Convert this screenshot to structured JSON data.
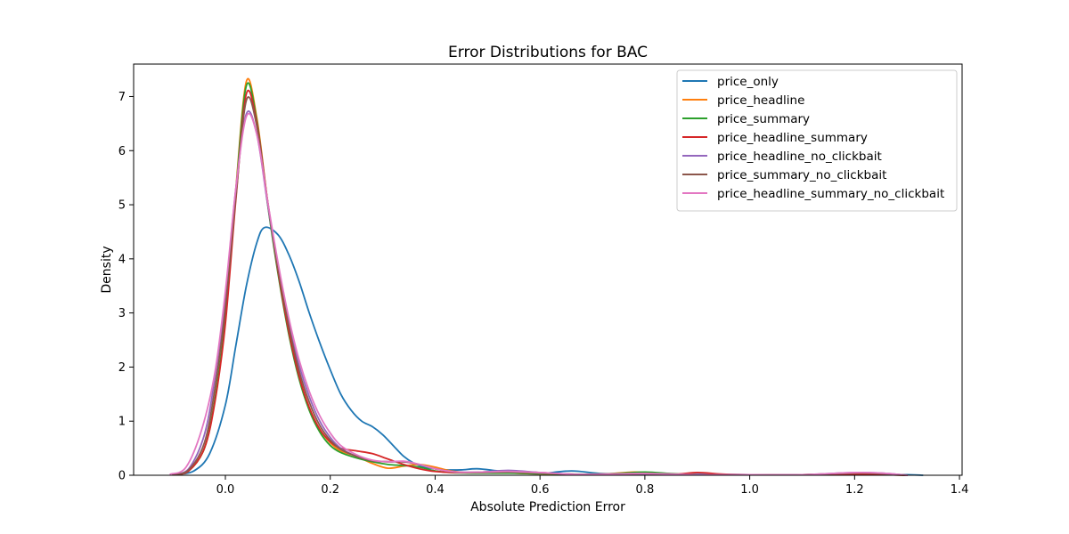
{
  "chart_data": {
    "type": "line",
    "title": "Error Distributions for BAC",
    "xlabel": "Absolute Prediction Error",
    "ylabel": "Density",
    "xlim": [
      -0.175,
      1.405
    ],
    "ylim": [
      0,
      7.6
    ],
    "xticks": [
      0.0,
      0.2,
      0.4,
      0.6,
      0.8,
      1.0,
      1.2,
      1.4
    ],
    "xtick_labels": [
      "0.0",
      "0.2",
      "0.4",
      "0.6",
      "0.8",
      "1.0",
      "1.2",
      "1.4"
    ],
    "yticks": [
      0,
      1,
      2,
      3,
      4,
      5,
      6,
      7
    ],
    "ytick_labels": [
      "0",
      "1",
      "2",
      "3",
      "4",
      "5",
      "6",
      "7"
    ],
    "grid": false,
    "legend_position": "top-right",
    "series": [
      {
        "name": "price_only",
        "color": "#1f77b4",
        "points": [
          [
            -0.09,
            0.02
          ],
          [
            -0.06,
            0.08
          ],
          [
            -0.03,
            0.4
          ],
          [
            0.0,
            1.3
          ],
          [
            0.02,
            2.4
          ],
          [
            0.04,
            3.5
          ],
          [
            0.06,
            4.3
          ],
          [
            0.075,
            4.58
          ],
          [
            0.1,
            4.45
          ],
          [
            0.12,
            4.1
          ],
          [
            0.14,
            3.6
          ],
          [
            0.16,
            3.0
          ],
          [
            0.18,
            2.45
          ],
          [
            0.2,
            1.95
          ],
          [
            0.22,
            1.5
          ],
          [
            0.24,
            1.2
          ],
          [
            0.26,
            1.0
          ],
          [
            0.28,
            0.9
          ],
          [
            0.3,
            0.75
          ],
          [
            0.32,
            0.55
          ],
          [
            0.34,
            0.35
          ],
          [
            0.36,
            0.22
          ],
          [
            0.38,
            0.15
          ],
          [
            0.4,
            0.12
          ],
          [
            0.42,
            0.1
          ],
          [
            0.45,
            0.1
          ],
          [
            0.48,
            0.12
          ],
          [
            0.52,
            0.08
          ],
          [
            0.56,
            0.04
          ],
          [
            0.6,
            0.03
          ],
          [
            0.66,
            0.08
          ],
          [
            0.72,
            0.03
          ],
          [
            0.8,
            0.02
          ],
          [
            0.9,
            0.02
          ],
          [
            1.0,
            0.01
          ],
          [
            1.1,
            0.01
          ],
          [
            1.2,
            0.02
          ],
          [
            1.3,
            0.01
          ],
          [
            1.33,
            0.0
          ]
        ]
      },
      {
        "name": "price_headline",
        "color": "#ff7f0e",
        "points": [
          [
            -0.1,
            0.01
          ],
          [
            -0.07,
            0.08
          ],
          [
            -0.04,
            0.5
          ],
          [
            -0.02,
            1.4
          ],
          [
            0.0,
            2.9
          ],
          [
            0.02,
            5.3
          ],
          [
            0.04,
            7.28
          ],
          [
            0.06,
            6.6
          ],
          [
            0.08,
            5.1
          ],
          [
            0.1,
            3.8
          ],
          [
            0.12,
            2.7
          ],
          [
            0.14,
            1.85
          ],
          [
            0.16,
            1.25
          ],
          [
            0.18,
            0.85
          ],
          [
            0.2,
            0.6
          ],
          [
            0.22,
            0.45
          ],
          [
            0.25,
            0.35
          ],
          [
            0.28,
            0.22
          ],
          [
            0.31,
            0.13
          ],
          [
            0.34,
            0.17
          ],
          [
            0.37,
            0.2
          ],
          [
            0.4,
            0.15
          ],
          [
            0.43,
            0.08
          ],
          [
            0.47,
            0.04
          ],
          [
            0.52,
            0.05
          ],
          [
            0.58,
            0.03
          ],
          [
            0.65,
            0.02
          ],
          [
            0.72,
            0.02
          ],
          [
            0.78,
            0.06
          ],
          [
            0.84,
            0.03
          ],
          [
            0.9,
            0.01
          ],
          [
            1.0,
            0.01
          ],
          [
            1.1,
            0.01
          ],
          [
            1.2,
            0.04
          ],
          [
            1.26,
            0.02
          ],
          [
            1.3,
            0.0
          ]
        ]
      },
      {
        "name": "price_summary",
        "color": "#2ca02c",
        "points": [
          [
            -0.1,
            0.01
          ],
          [
            -0.07,
            0.08
          ],
          [
            -0.04,
            0.5
          ],
          [
            -0.02,
            1.4
          ],
          [
            0.0,
            2.9
          ],
          [
            0.02,
            5.25
          ],
          [
            0.04,
            7.2
          ],
          [
            0.06,
            6.55
          ],
          [
            0.08,
            5.05
          ],
          [
            0.1,
            3.75
          ],
          [
            0.12,
            2.65
          ],
          [
            0.14,
            1.8
          ],
          [
            0.16,
            1.2
          ],
          [
            0.18,
            0.8
          ],
          [
            0.2,
            0.55
          ],
          [
            0.22,
            0.42
          ],
          [
            0.25,
            0.32
          ],
          [
            0.28,
            0.25
          ],
          [
            0.31,
            0.2
          ],
          [
            0.34,
            0.18
          ],
          [
            0.37,
            0.15
          ],
          [
            0.4,
            0.08
          ],
          [
            0.43,
            0.05
          ],
          [
            0.48,
            0.04
          ],
          [
            0.54,
            0.04
          ],
          [
            0.6,
            0.03
          ],
          [
            0.68,
            0.02
          ],
          [
            0.74,
            0.03
          ],
          [
            0.8,
            0.06
          ],
          [
            0.85,
            0.03
          ],
          [
            0.9,
            0.01
          ],
          [
            1.0,
            0.01
          ],
          [
            1.1,
            0.01
          ],
          [
            1.2,
            0.02
          ],
          [
            1.26,
            0.01
          ],
          [
            1.3,
            0.0
          ]
        ]
      },
      {
        "name": "price_headline_summary",
        "color": "#d62728",
        "points": [
          [
            -0.1,
            0.01
          ],
          [
            -0.07,
            0.08
          ],
          [
            -0.04,
            0.5
          ],
          [
            -0.02,
            1.35
          ],
          [
            0.0,
            2.8
          ],
          [
            0.02,
            5.1
          ],
          [
            0.04,
            7.05
          ],
          [
            0.06,
            6.5
          ],
          [
            0.08,
            5.1
          ],
          [
            0.1,
            3.8
          ],
          [
            0.12,
            2.7
          ],
          [
            0.14,
            1.85
          ],
          [
            0.16,
            1.25
          ],
          [
            0.18,
            0.85
          ],
          [
            0.2,
            0.62
          ],
          [
            0.22,
            0.5
          ],
          [
            0.25,
            0.45
          ],
          [
            0.28,
            0.4
          ],
          [
            0.31,
            0.3
          ],
          [
            0.34,
            0.2
          ],
          [
            0.37,
            0.12
          ],
          [
            0.4,
            0.07
          ],
          [
            0.44,
            0.05
          ],
          [
            0.49,
            0.06
          ],
          [
            0.54,
            0.08
          ],
          [
            0.6,
            0.05
          ],
          [
            0.66,
            0.02
          ],
          [
            0.72,
            0.02
          ],
          [
            0.8,
            0.03
          ],
          [
            0.86,
            0.02
          ],
          [
            0.9,
            0.05
          ],
          [
            0.95,
            0.02
          ],
          [
            1.0,
            0.01
          ],
          [
            1.1,
            0.01
          ],
          [
            1.2,
            0.02
          ],
          [
            1.3,
            0.0
          ]
        ]
      },
      {
        "name": "price_headline_no_clickbait",
        "color": "#9467bd",
        "points": [
          [
            -0.1,
            0.02
          ],
          [
            -0.07,
            0.12
          ],
          [
            -0.04,
            0.75
          ],
          [
            -0.02,
            1.8
          ],
          [
            0.0,
            3.3
          ],
          [
            0.02,
            5.3
          ],
          [
            0.04,
            6.68
          ],
          [
            0.06,
            6.3
          ],
          [
            0.08,
            5.05
          ],
          [
            0.1,
            3.85
          ],
          [
            0.12,
            2.85
          ],
          [
            0.14,
            2.05
          ],
          [
            0.16,
            1.45
          ],
          [
            0.18,
            1.0
          ],
          [
            0.2,
            0.7
          ],
          [
            0.22,
            0.5
          ],
          [
            0.25,
            0.35
          ],
          [
            0.28,
            0.27
          ],
          [
            0.31,
            0.25
          ],
          [
            0.34,
            0.25
          ],
          [
            0.37,
            0.2
          ],
          [
            0.4,
            0.12
          ],
          [
            0.44,
            0.06
          ],
          [
            0.49,
            0.06
          ],
          [
            0.54,
            0.09
          ],
          [
            0.6,
            0.05
          ],
          [
            0.66,
            0.02
          ],
          [
            0.72,
            0.02
          ],
          [
            0.8,
            0.03
          ],
          [
            0.9,
            0.01
          ],
          [
            1.0,
            0.01
          ],
          [
            1.1,
            0.01
          ],
          [
            1.2,
            0.05
          ],
          [
            1.25,
            0.04
          ],
          [
            1.3,
            0.0
          ]
        ]
      },
      {
        "name": "price_summary_no_clickbait",
        "color": "#8c564b",
        "points": [
          [
            -0.1,
            0.01
          ],
          [
            -0.07,
            0.1
          ],
          [
            -0.04,
            0.6
          ],
          [
            -0.02,
            1.6
          ],
          [
            0.0,
            3.1
          ],
          [
            0.02,
            5.15
          ],
          [
            0.04,
            6.93
          ],
          [
            0.06,
            6.45
          ],
          [
            0.08,
            5.1
          ],
          [
            0.1,
            3.85
          ],
          [
            0.12,
            2.8
          ],
          [
            0.14,
            1.95
          ],
          [
            0.16,
            1.35
          ],
          [
            0.18,
            0.92
          ],
          [
            0.2,
            0.65
          ],
          [
            0.22,
            0.48
          ],
          [
            0.25,
            0.35
          ],
          [
            0.28,
            0.27
          ],
          [
            0.31,
            0.25
          ],
          [
            0.34,
            0.25
          ],
          [
            0.37,
            0.2
          ],
          [
            0.4,
            0.12
          ],
          [
            0.44,
            0.06
          ],
          [
            0.49,
            0.05
          ],
          [
            0.54,
            0.06
          ],
          [
            0.6,
            0.04
          ],
          [
            0.66,
            0.02
          ],
          [
            0.72,
            0.02
          ],
          [
            0.8,
            0.03
          ],
          [
            0.9,
            0.01
          ],
          [
            1.0,
            0.01
          ],
          [
            1.1,
            0.01
          ],
          [
            1.2,
            0.04
          ],
          [
            1.25,
            0.03
          ],
          [
            1.3,
            0.0
          ]
        ]
      },
      {
        "name": "price_headline_summary_no_clickbait",
        "color": "#e377c2",
        "points": [
          [
            -0.105,
            0.02
          ],
          [
            -0.075,
            0.15
          ],
          [
            -0.045,
            0.85
          ],
          [
            -0.02,
            1.9
          ],
          [
            0.0,
            3.4
          ],
          [
            0.02,
            5.3
          ],
          [
            0.04,
            6.63
          ],
          [
            0.06,
            6.3
          ],
          [
            0.08,
            5.1
          ],
          [
            0.1,
            3.95
          ],
          [
            0.12,
            2.95
          ],
          [
            0.14,
            2.15
          ],
          [
            0.16,
            1.55
          ],
          [
            0.18,
            1.1
          ],
          [
            0.2,
            0.78
          ],
          [
            0.22,
            0.55
          ],
          [
            0.25,
            0.38
          ],
          [
            0.28,
            0.28
          ],
          [
            0.31,
            0.25
          ],
          [
            0.34,
            0.26
          ],
          [
            0.37,
            0.2
          ],
          [
            0.4,
            0.12
          ],
          [
            0.44,
            0.06
          ],
          [
            0.49,
            0.06
          ],
          [
            0.54,
            0.07
          ],
          [
            0.6,
            0.05
          ],
          [
            0.66,
            0.02
          ],
          [
            0.72,
            0.02
          ],
          [
            0.8,
            0.03
          ],
          [
            0.9,
            0.01
          ],
          [
            1.0,
            0.01
          ],
          [
            1.1,
            0.01
          ],
          [
            1.2,
            0.05
          ],
          [
            1.25,
            0.04
          ],
          [
            1.3,
            0.0
          ]
        ]
      }
    ]
  }
}
